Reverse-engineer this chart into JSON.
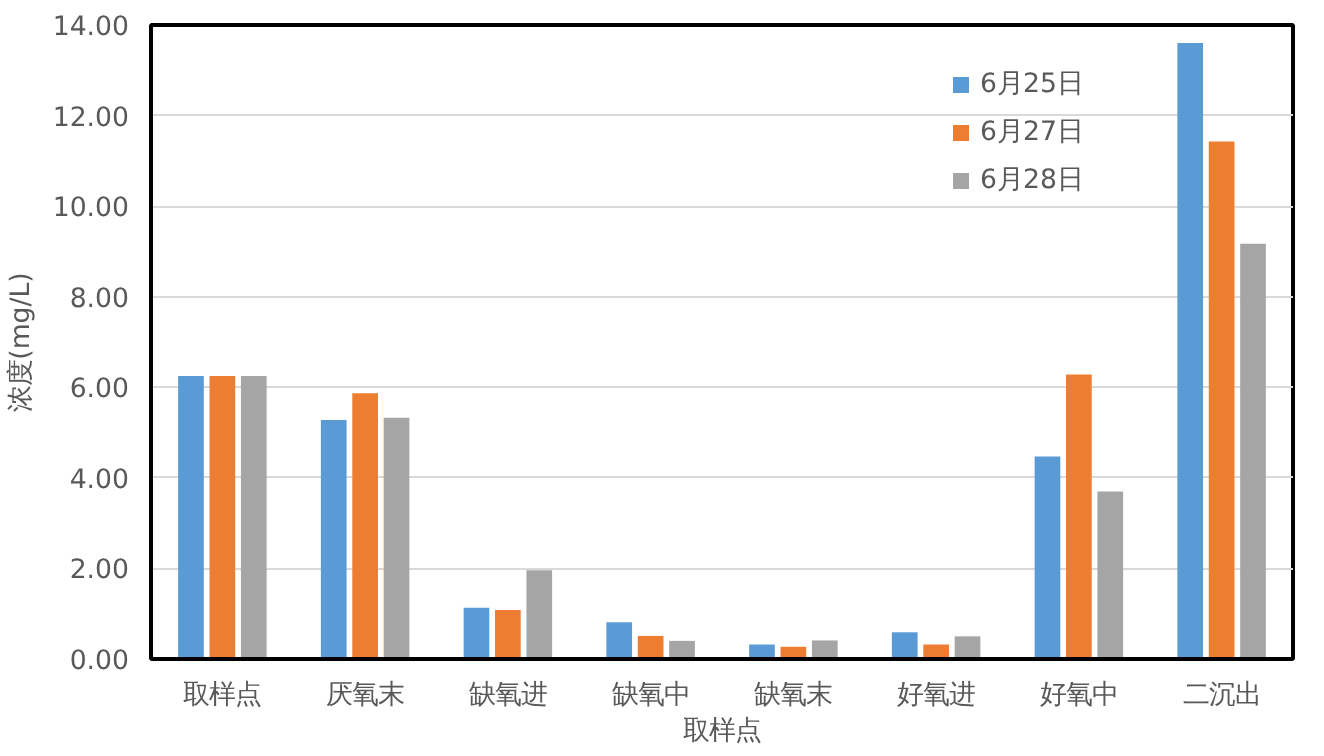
{
  "chart_data": {
    "type": "bar",
    "xlabel": "取样点",
    "ylabel": "浓度(mg/L)",
    "categories": [
      "取样点",
      "厌氧末",
      "缺氧进",
      "缺氧中",
      "缺氧末",
      "好氧进",
      "好氧中",
      "二沉出"
    ],
    "series": [
      {
        "name": "6月25日",
        "color": "#5b9bd5",
        "values": [
          6.25,
          5.28,
          1.13,
          0.81,
          0.32,
          0.59,
          4.47,
          13.6
        ]
      },
      {
        "name": "6月27日",
        "color": "#ed7d31",
        "values": [
          6.25,
          5.87,
          1.08,
          0.51,
          0.27,
          0.32,
          6.28,
          11.43
        ]
      },
      {
        "name": "6月28日",
        "color": "#a5a5a5",
        "values": [
          6.25,
          5.33,
          1.96,
          0.4,
          0.41,
          0.5,
          3.7,
          9.17
        ]
      }
    ],
    "ylim": [
      0,
      14
    ],
    "yticks": [
      {
        "value": 0,
        "label": "0.00"
      },
      {
        "value": 2,
        "label": "2.00"
      },
      {
        "value": 4,
        "label": "4.00"
      },
      {
        "value": 6,
        "label": "6.00"
      },
      {
        "value": 8,
        "label": "8.00"
      },
      {
        "value": 10,
        "label": "10.00"
      },
      {
        "value": 12,
        "label": "12.00"
      },
      {
        "value": 14,
        "label": "14.00"
      }
    ],
    "grid": "y",
    "legend": "top right"
  }
}
